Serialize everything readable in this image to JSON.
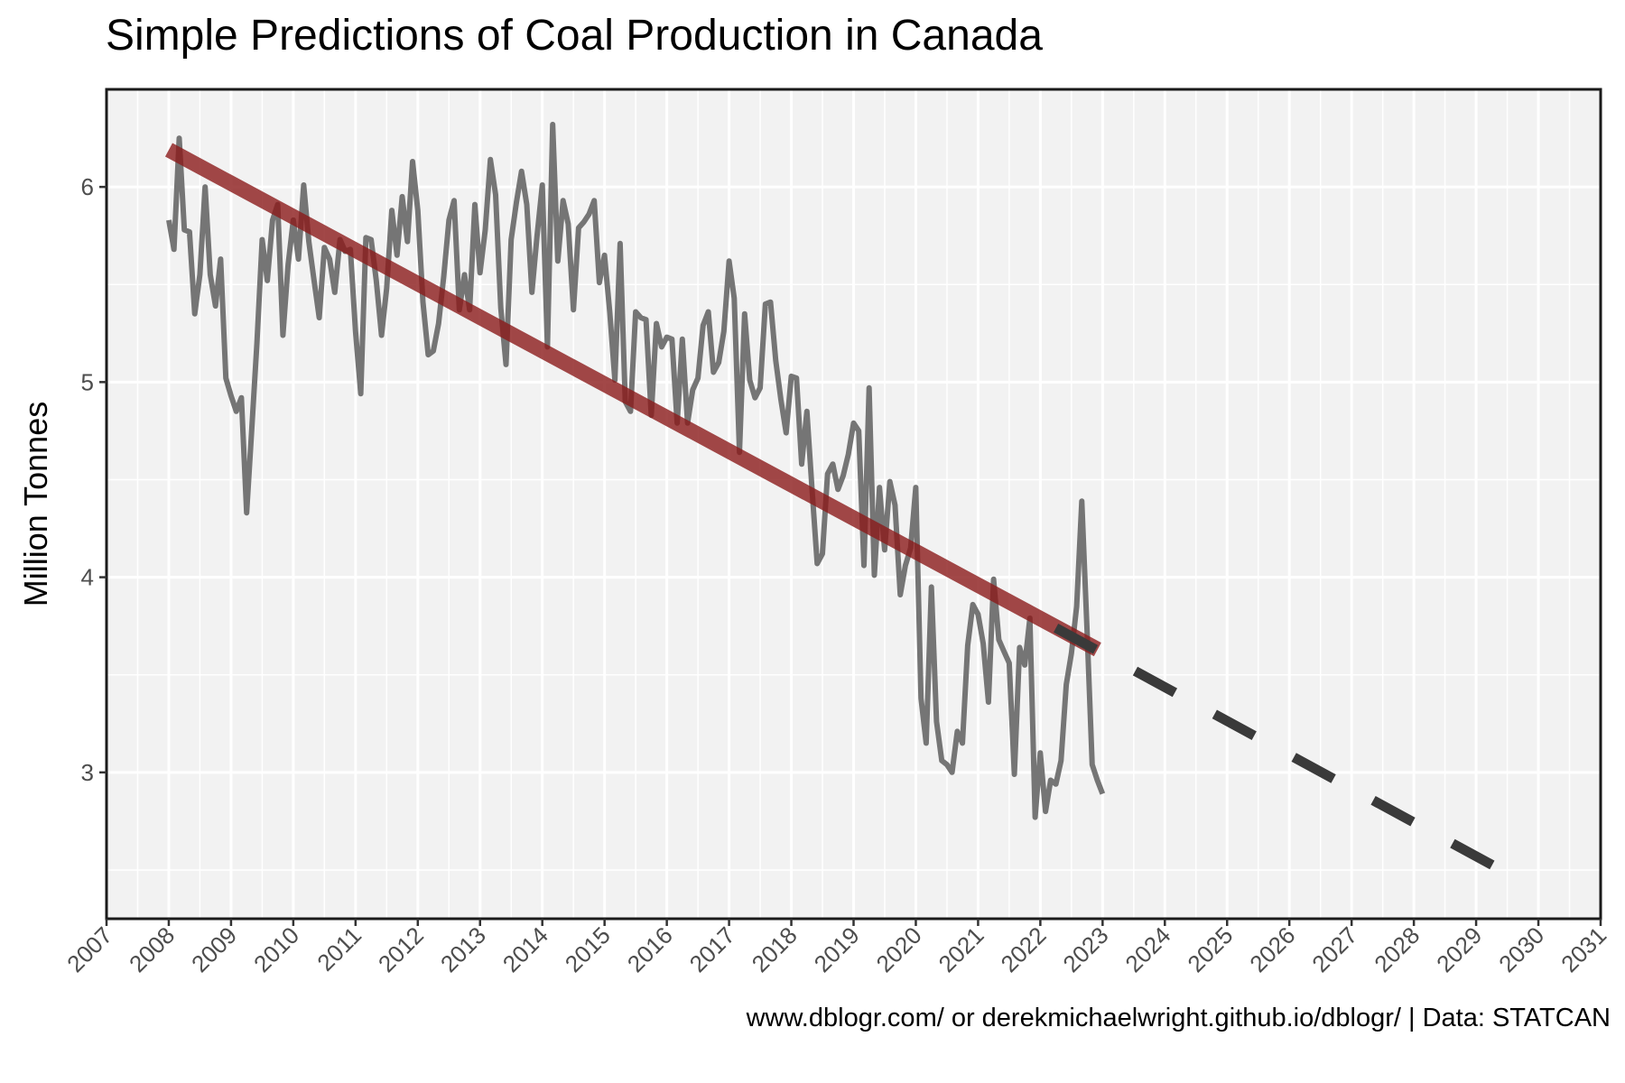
{
  "chart_data": {
    "type": "line",
    "title": "Simple Predictions of Coal Production in Canada",
    "caption": "www.dblogr.com/ or derekmichaelwright.github.io/dblogr/ | Data: STATCAN",
    "xlabel": "",
    "ylabel": "Million Tonnes",
    "xlim": [
      2007,
      2031
    ],
    "ylim": [
      2.25,
      6.5
    ],
    "x_ticks": [
      "2007",
      "2008",
      "2009",
      "2010",
      "2011",
      "2012",
      "2013",
      "2014",
      "2015",
      "2016",
      "2017",
      "2018",
      "2019",
      "2020",
      "2021",
      "2022",
      "2023",
      "2024",
      "2025",
      "2026",
      "2027",
      "2028",
      "2029",
      "2030",
      "2031"
    ],
    "y_ticks": [
      3,
      4,
      5,
      6
    ],
    "grid": true,
    "background": "#f2f2f2",
    "series": [
      {
        "style": "monthly-observed",
        "color": "#6e6e6e",
        "x_start": 2008.0,
        "x_step": 0.08333,
        "values": [
          5.83,
          5.68,
          6.25,
          5.78,
          5.77,
          5.35,
          5.55,
          6.0,
          5.55,
          5.39,
          5.63,
          5.02,
          4.93,
          4.85,
          4.92,
          4.33,
          4.76,
          5.2,
          5.73,
          5.52,
          5.83,
          5.91,
          5.24,
          5.6,
          5.83,
          5.63,
          6.01,
          5.72,
          5.52,
          5.33,
          5.69,
          5.63,
          5.46,
          5.73,
          5.67,
          5.68,
          5.26,
          4.94,
          5.74,
          5.73,
          5.52,
          5.24,
          5.48,
          5.88,
          5.65,
          5.95,
          5.72,
          6.13,
          5.88,
          5.41,
          5.14,
          5.16,
          5.3,
          5.54,
          5.83,
          5.93,
          5.37,
          5.55,
          5.37,
          5.91,
          5.56,
          5.78,
          6.14,
          5.96,
          5.38,
          5.09,
          5.73,
          5.92,
          6.08,
          5.91,
          5.46,
          5.75,
          6.01,
          5.18,
          6.32,
          5.62,
          5.93,
          5.81,
          5.37,
          5.79,
          5.82,
          5.86,
          5.93,
          5.51,
          5.65,
          5.36,
          5.01,
          5.71,
          4.9,
          4.85,
          5.36,
          5.33,
          5.32,
          4.83,
          5.3,
          5.18,
          5.23,
          5.22,
          4.79,
          5.22,
          4.79,
          4.96,
          5.02,
          5.29,
          5.36,
          5.05,
          5.1,
          5.26,
          5.62,
          5.43,
          4.64,
          5.35,
          5.01,
          4.92,
          4.97,
          5.4,
          5.41,
          5.11,
          4.91,
          4.74,
          5.03,
          5.02,
          4.58,
          4.85,
          4.45,
          4.07,
          4.12,
          4.53,
          4.58,
          4.45,
          4.52,
          4.63,
          4.79,
          4.75,
          4.06,
          4.97,
          4.01,
          4.46,
          4.14,
          4.49,
          4.37,
          3.91,
          4.06,
          4.15,
          4.46,
          3.38,
          3.15,
          3.95,
          3.26,
          3.06,
          3.04,
          3.0,
          3.21,
          3.15,
          3.65,
          3.86,
          3.81,
          3.66,
          3.36,
          3.99,
          3.68,
          3.62,
          3.56,
          2.99,
          3.64,
          3.55,
          3.79,
          2.77,
          3.1,
          2.8,
          2.96,
          2.94,
          3.06,
          3.45,
          3.61,
          3.85,
          4.39,
          3.73,
          3.04,
          2.96,
          2.89
        ]
      },
      {
        "style": "linear-trend",
        "color": "#8b1a1a",
        "x": [
          2008.0,
          2022.92
        ],
        "values": [
          6.19,
          3.63
        ]
      },
      {
        "style": "projection-dashed",
        "color": "#3a3a3a",
        "x": [
          2022.25,
          2029.75
        ],
        "values": [
          3.74,
          2.44
        ]
      }
    ]
  }
}
